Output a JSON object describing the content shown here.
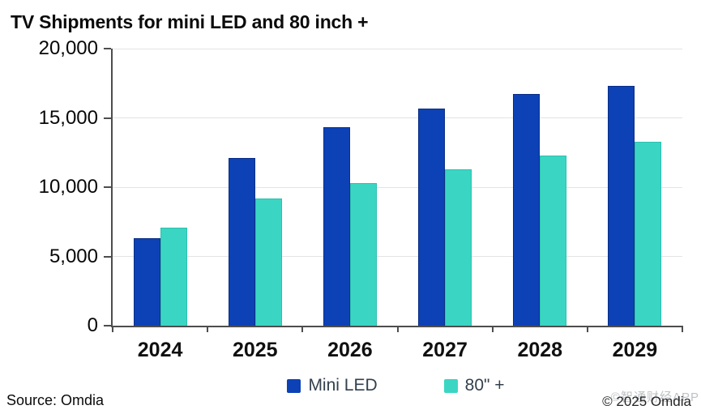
{
  "title": "TV Shipments for mini LED and 80 inch +",
  "footer": {
    "source": "Source: Omdia",
    "copyright": "© 2025 Omdia",
    "watermark": "©智通财经APP"
  },
  "colors": {
    "mini_led_fill": "#0d41b6",
    "mini_led_border": "#0a2e86",
    "eighty_plus_fill": "#3ad6c3",
    "eighty_plus_border": "#2cc0ae",
    "axis": "#4d4d4d",
    "gridline": "#e4e4e4",
    "legend_text": "#33404d"
  },
  "chart_data": {
    "type": "bar",
    "title": "TV Shipments for mini LED and 80 inch +",
    "categories": [
      "2024",
      "2025",
      "2026",
      "2027",
      "2028",
      "2029"
    ],
    "series": [
      {
        "name": "Mini LED",
        "color": "#0d41b6",
        "border": "#0a2e86",
        "values": [
          6300,
          12100,
          14300,
          15700,
          16700,
          17300
        ]
      },
      {
        "name": "80\" +",
        "color": "#3ad6c3",
        "border": "#2cc0ae",
        "values": [
          7100,
          9200,
          10300,
          11300,
          12300,
          13300
        ]
      }
    ],
    "xlabel": "",
    "ylabel": "",
    "ylim": [
      0,
      20000
    ],
    "yticks": [
      0,
      5000,
      10000,
      15000,
      20000
    ],
    "ytick_labels": [
      "0",
      "5,000",
      "10,000",
      "15,000",
      "20,000"
    ],
    "grid": true,
    "legend_position": "bottom"
  }
}
